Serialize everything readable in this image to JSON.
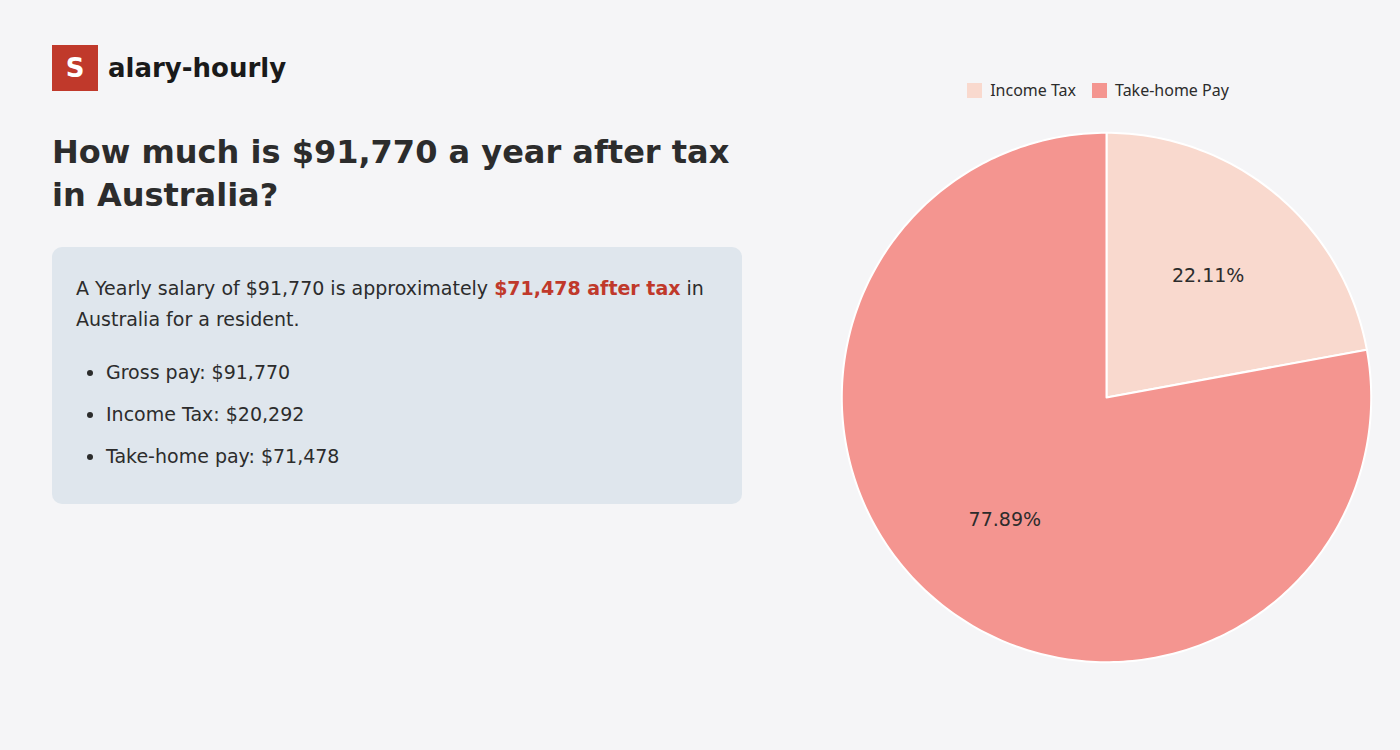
{
  "chart_data": {
    "type": "pie",
    "title": "How much is $91,770 a year after tax in Australia?",
    "categories": [
      "Income Tax",
      "Take-home Pay"
    ],
    "values": [
      22.11,
      77.89
    ],
    "value_labels": [
      "22.11%",
      "77.89%"
    ],
    "colors": [
      "#f9d9ce",
      "#f49590"
    ],
    "data_labels": true,
    "legend": "top",
    "annotations": [
      "S",
      "alary-hourly",
      "A Yearly salary of $91,770 is approximately ",
      "$71,478 after tax",
      " in",
      "Australia for a resident.",
      "Gross pay: $91,770",
      "Income Tax: $20,292",
      "Take-home pay: $71,478"
    ]
  }
}
